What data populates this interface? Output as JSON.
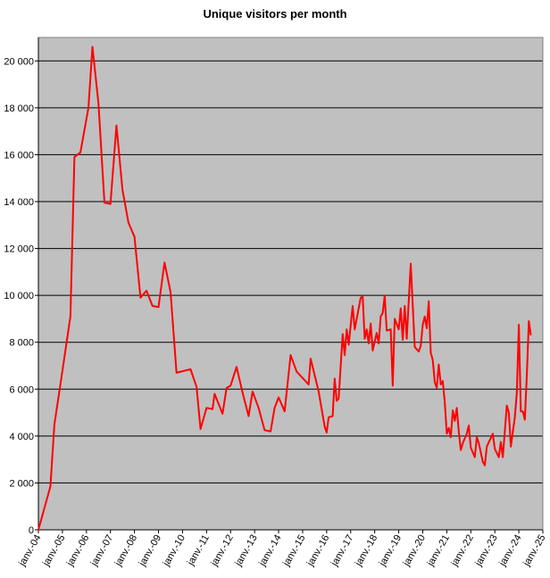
{
  "chart_data": {
    "type": "line",
    "title": "Unique visitors per month",
    "color": "#ff0000",
    "grid": true,
    "x": [
      "2004-01",
      "2004-07",
      "2004-09",
      "2004-12",
      "2005-05",
      "2005-07",
      "2005-10",
      "2006-02",
      "2006-04",
      "2006-07",
      "2006-10",
      "2007-01",
      "2007-04",
      "2007-07",
      "2007-10",
      "2008-01",
      "2008-04",
      "2008-07",
      "2008-10",
      "2009-01",
      "2009-04",
      "2009-07",
      "2009-10",
      "2010-05",
      "2010-08",
      "2010-10",
      "2011-01",
      "2011-04",
      "2011-05",
      "2011-09",
      "2011-11",
      "2012-01",
      "2012-04",
      "2012-07",
      "2012-10",
      "2012-12",
      "2013-03",
      "2013-06",
      "2013-09",
      "2013-11",
      "2014-01",
      "2014-04",
      "2014-07",
      "2014-10",
      "2015-04",
      "2015-05",
      "2015-09",
      "2015-12",
      "2016-01",
      "2016-02",
      "2016-04",
      "2016-05",
      "2016-06",
      "2016-07",
      "2016-09",
      "2016-10",
      "2016-11",
      "2016-12",
      "2017-02",
      "2017-03",
      "2017-06",
      "2017-07",
      "2017-08",
      "2017-09",
      "2017-10",
      "2017-11",
      "2017-12",
      "2018-02",
      "2018-03",
      "2018-04",
      "2018-05",
      "2018-06",
      "2018-07",
      "2018-09",
      "2018-10",
      "2018-11",
      "2019-01",
      "2019-02",
      "2019-03",
      "2019-04",
      "2019-05",
      "2019-07",
      "2019-08",
      "2019-09",
      "2019-11",
      "2019-12",
      "2020-01",
      "2020-02",
      "2020-03",
      "2020-04",
      "2020-05",
      "2020-06",
      "2020-07",
      "2020-08",
      "2020-09",
      "2020-10",
      "2020-11",
      "2020-12",
      "2021-01",
      "2021-02",
      "2021-03",
      "2021-04",
      "2021-05",
      "2021-06",
      "2021-07",
      "2021-08",
      "2021-09",
      "2021-11",
      "2021-12",
      "2022-01",
      "2022-03",
      "2022-04",
      "2022-05",
      "2022-07",
      "2022-08",
      "2022-09",
      "2022-12",
      "2023-01",
      "2023-03",
      "2023-04",
      "2023-05",
      "2023-07",
      "2023-08",
      "2023-09",
      "2023-11",
      "2023-12",
      "2024-01",
      "2024-02",
      "2024-03",
      "2024-04",
      "2024-05",
      "2024-06",
      "2024-07"
    ],
    "values": [
      0,
      1850,
      4500,
      6200,
      9100,
      15900,
      16100,
      18000,
      20600,
      18200,
      13950,
      13900,
      17250,
      14500,
      13100,
      12500,
      9900,
      10200,
      9550,
      9500,
      11400,
      10150,
      6700,
      6850,
      6100,
      4300,
      5200,
      5150,
      5800,
      4950,
      6050,
      6150,
      6950,
      5850,
      4850,
      5900,
      5200,
      4250,
      4200,
      5200,
      5650,
      5050,
      7450,
      6750,
      6200,
      7300,
      5900,
      4400,
      4150,
      4800,
      4850,
      6450,
      5500,
      5600,
      8350,
      7450,
      8550,
      7900,
      9550,
      8550,
      9900,
      9950,
      8150,
      8550,
      7950,
      8800,
      7650,
      8400,
      7950,
      9100,
      9250,
      10000,
      8500,
      8550,
      6150,
      9000,
      8550,
      9450,
      8100,
      9550,
      8150,
      11350,
      9600,
      7800,
      7600,
      7850,
      8750,
      9100,
      8600,
      9750,
      7550,
      7250,
      6300,
      6050,
      7050,
      6200,
      6350,
      5450,
      4100,
      4350,
      3950,
      5100,
      4650,
      5200,
      4200,
      3400,
      3700,
      4100,
      4450,
      3500,
      3100,
      3950,
      3700,
      2900,
      2750,
      3550,
      4100,
      3450,
      3100,
      3750,
      3100,
      5300,
      5000,
      3550,
      4800,
      5850,
      8750,
      5050,
      5050,
      4700,
      6600,
      8900,
      8300
    ],
    "xlim": [
      "2004-01",
      "2025-01"
    ],
    "xticks": [
      {
        "value": "2004-01",
        "label": "janv.-04"
      },
      {
        "value": "2005-01",
        "label": "janv.-05"
      },
      {
        "value": "2006-01",
        "label": "janv.-06"
      },
      {
        "value": "2007-01",
        "label": "janv.-07"
      },
      {
        "value": "2008-01",
        "label": "janv.-08"
      },
      {
        "value": "2009-01",
        "label": "janv.-09"
      },
      {
        "value": "2010-01",
        "label": "janv.-10"
      },
      {
        "value": "2011-01",
        "label": "janv.-11"
      },
      {
        "value": "2012-01",
        "label": "janv.-12"
      },
      {
        "value": "2013-01",
        "label": "janv.-13"
      },
      {
        "value": "2014-01",
        "label": "janv.-14"
      },
      {
        "value": "2015-01",
        "label": "janv.-15"
      },
      {
        "value": "2016-01",
        "label": "janv.-16"
      },
      {
        "value": "2017-01",
        "label": "janv.-17"
      },
      {
        "value": "2018-01",
        "label": "janv.-18"
      },
      {
        "value": "2019-01",
        "label": "janv.-19"
      },
      {
        "value": "2020-01",
        "label": "janv.-20"
      },
      {
        "value": "2021-01",
        "label": "janv.-21"
      },
      {
        "value": "2022-01",
        "label": "janv.-22"
      },
      {
        "value": "2023-01",
        "label": "janv.-23"
      },
      {
        "value": "2024-01",
        "label": "janv.-24"
      },
      {
        "value": "2025-01",
        "label": "janv.-25"
      }
    ],
    "ylim": [
      0,
      21000
    ],
    "yticks": [
      0,
      {
        "value": 2000,
        "label": "2 000"
      },
      {
        "value": 4000,
        "label": "4 000"
      },
      {
        "value": 6000,
        "label": "6 000"
      },
      {
        "value": 8000,
        "label": "8 000"
      },
      {
        "value": 10000,
        "label": "10 000"
      },
      {
        "value": 12000,
        "label": "12 000"
      },
      {
        "value": 14000,
        "label": "14 000"
      },
      {
        "value": 16000,
        "label": "16 000"
      },
      {
        "value": 18000,
        "label": "18 000"
      },
      {
        "value": 20000,
        "label": "20 000"
      }
    ]
  }
}
